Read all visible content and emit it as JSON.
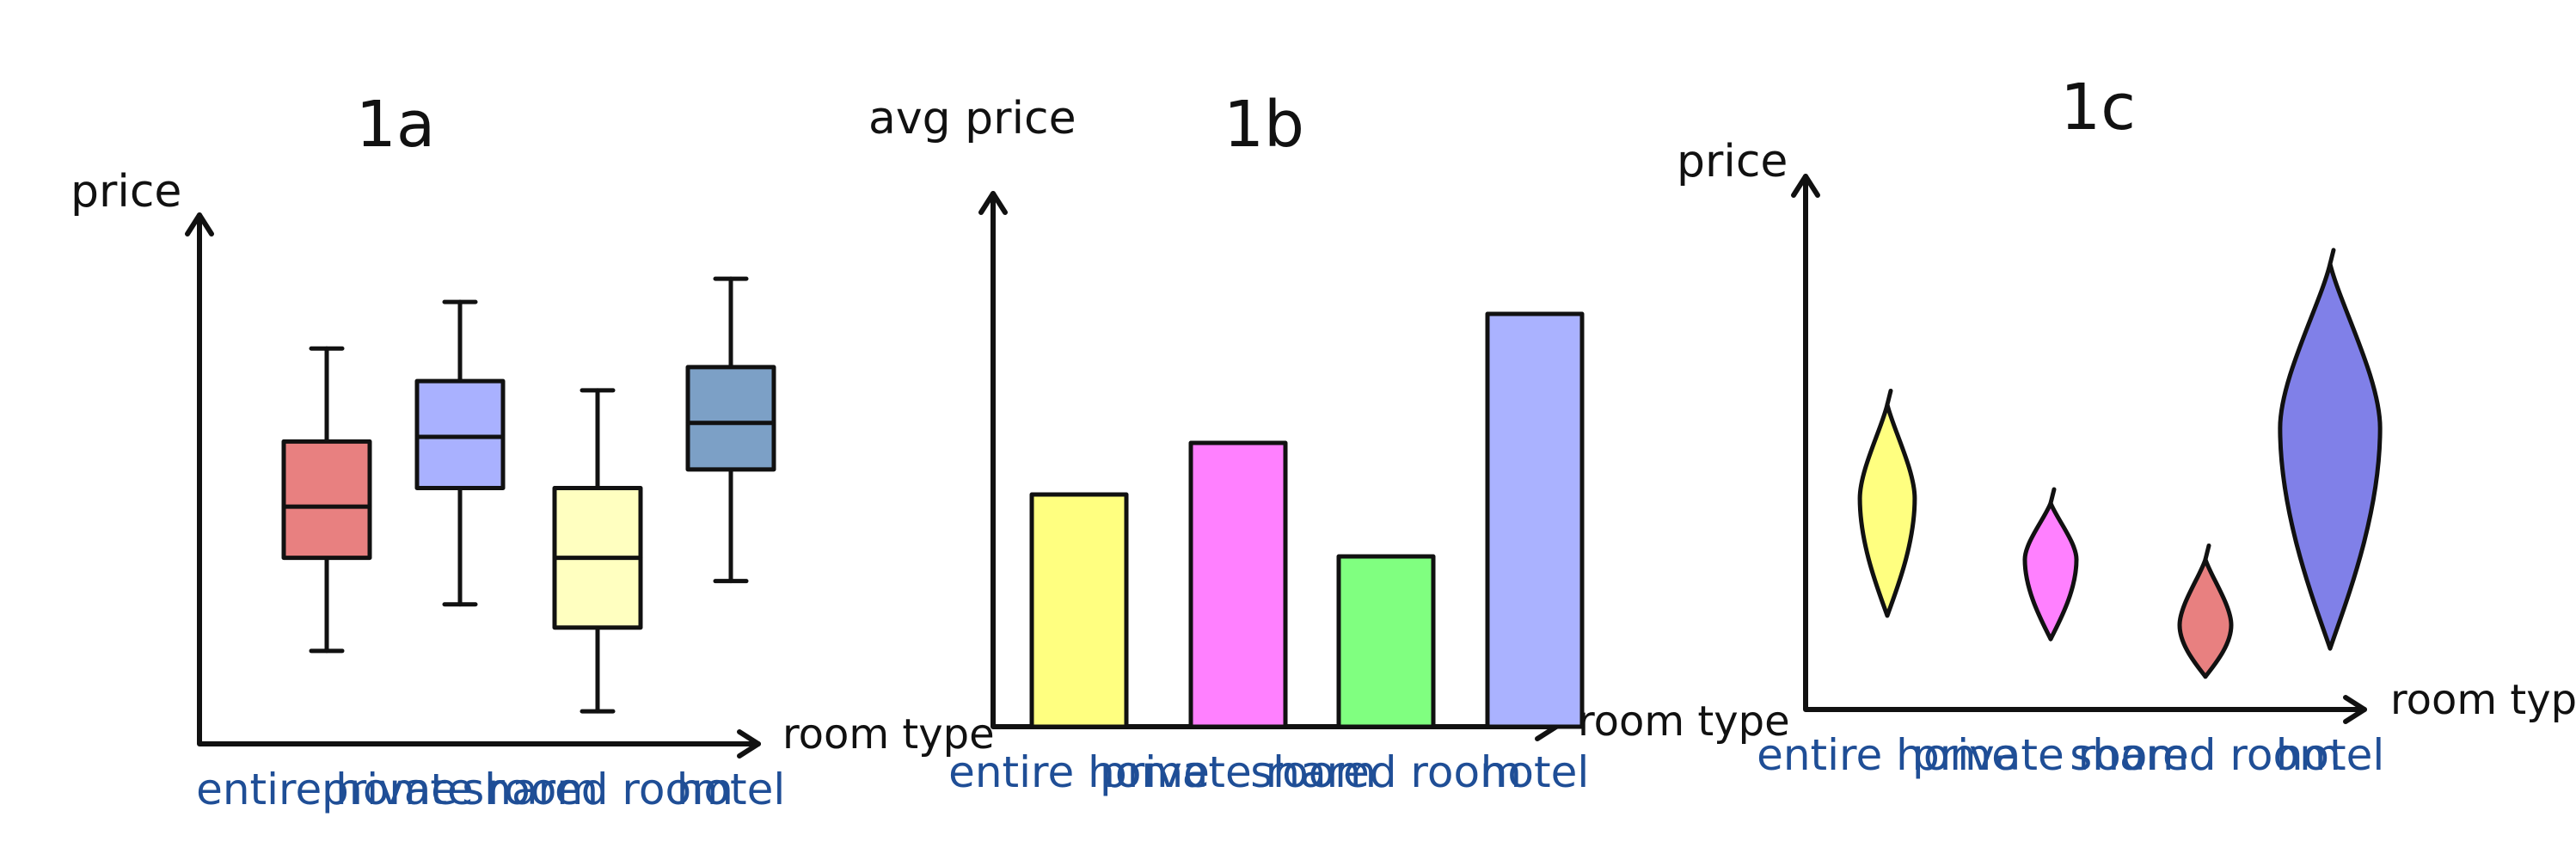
{
  "chart_data": [
    {
      "panel": "1a",
      "type": "box",
      "title": "1a",
      "ylabel": "price",
      "xlabel": "room type",
      "categories": [
        "entire home",
        "private room",
        "shared room",
        "hotel"
      ],
      "boxes": [
        {
          "category": "entire home",
          "min": 2.0,
          "q1": 4.0,
          "median": 5.1,
          "q3": 6.5,
          "max": 8.5,
          "color": "#e88080"
        },
        {
          "category": "private room",
          "min": 3.0,
          "q1": 5.5,
          "median": 6.6,
          "q3": 7.8,
          "max": 9.5,
          "color": "#a9b1ff"
        },
        {
          "category": "shared room",
          "min": 0.7,
          "q1": 2.5,
          "median": 4.0,
          "q3": 5.5,
          "max": 7.6,
          "color": "#ffffc0"
        },
        {
          "category": "hotel",
          "min": 3.5,
          "q1": 5.9,
          "median": 6.9,
          "q3": 8.1,
          "max": 10.0,
          "color": "#7ca0c6"
        }
      ],
      "ylim": [
        0,
        11
      ]
    },
    {
      "panel": "1b",
      "type": "bar",
      "title": "1b",
      "ylabel": "avg price",
      "xlabel": "room type",
      "categories": [
        "entire home",
        "private room",
        "shared room",
        "hotel"
      ],
      "values": [
        4.5,
        5.5,
        3.3,
        8.0
      ],
      "colors": [
        "#ffff80",
        "#ff80ff",
        "#80ff80",
        "#aab2ff"
      ],
      "ylim": [
        0,
        10
      ]
    },
    {
      "panel": "1c",
      "type": "violin",
      "title": "1c",
      "ylabel": "price",
      "xlabel": "room type",
      "categories": [
        "entire home",
        "private room",
        "shared room",
        "hotel"
      ],
      "violins": [
        {
          "category": "entire home",
          "min": 2.0,
          "max": 6.5,
          "peak": 4.5,
          "color": "#ffff80"
        },
        {
          "category": "private room",
          "min": 1.5,
          "max": 4.4,
          "peak": 3.2,
          "color": "#ff80ff"
        },
        {
          "category": "shared room",
          "min": 0.7,
          "max": 3.2,
          "peak": 1.8,
          "color": "#e88080"
        },
        {
          "category": "hotel",
          "min": 1.3,
          "max": 9.5,
          "peak": 6.0,
          "color": "#8080e8"
        }
      ],
      "ylim": [
        0,
        11
      ]
    }
  ]
}
